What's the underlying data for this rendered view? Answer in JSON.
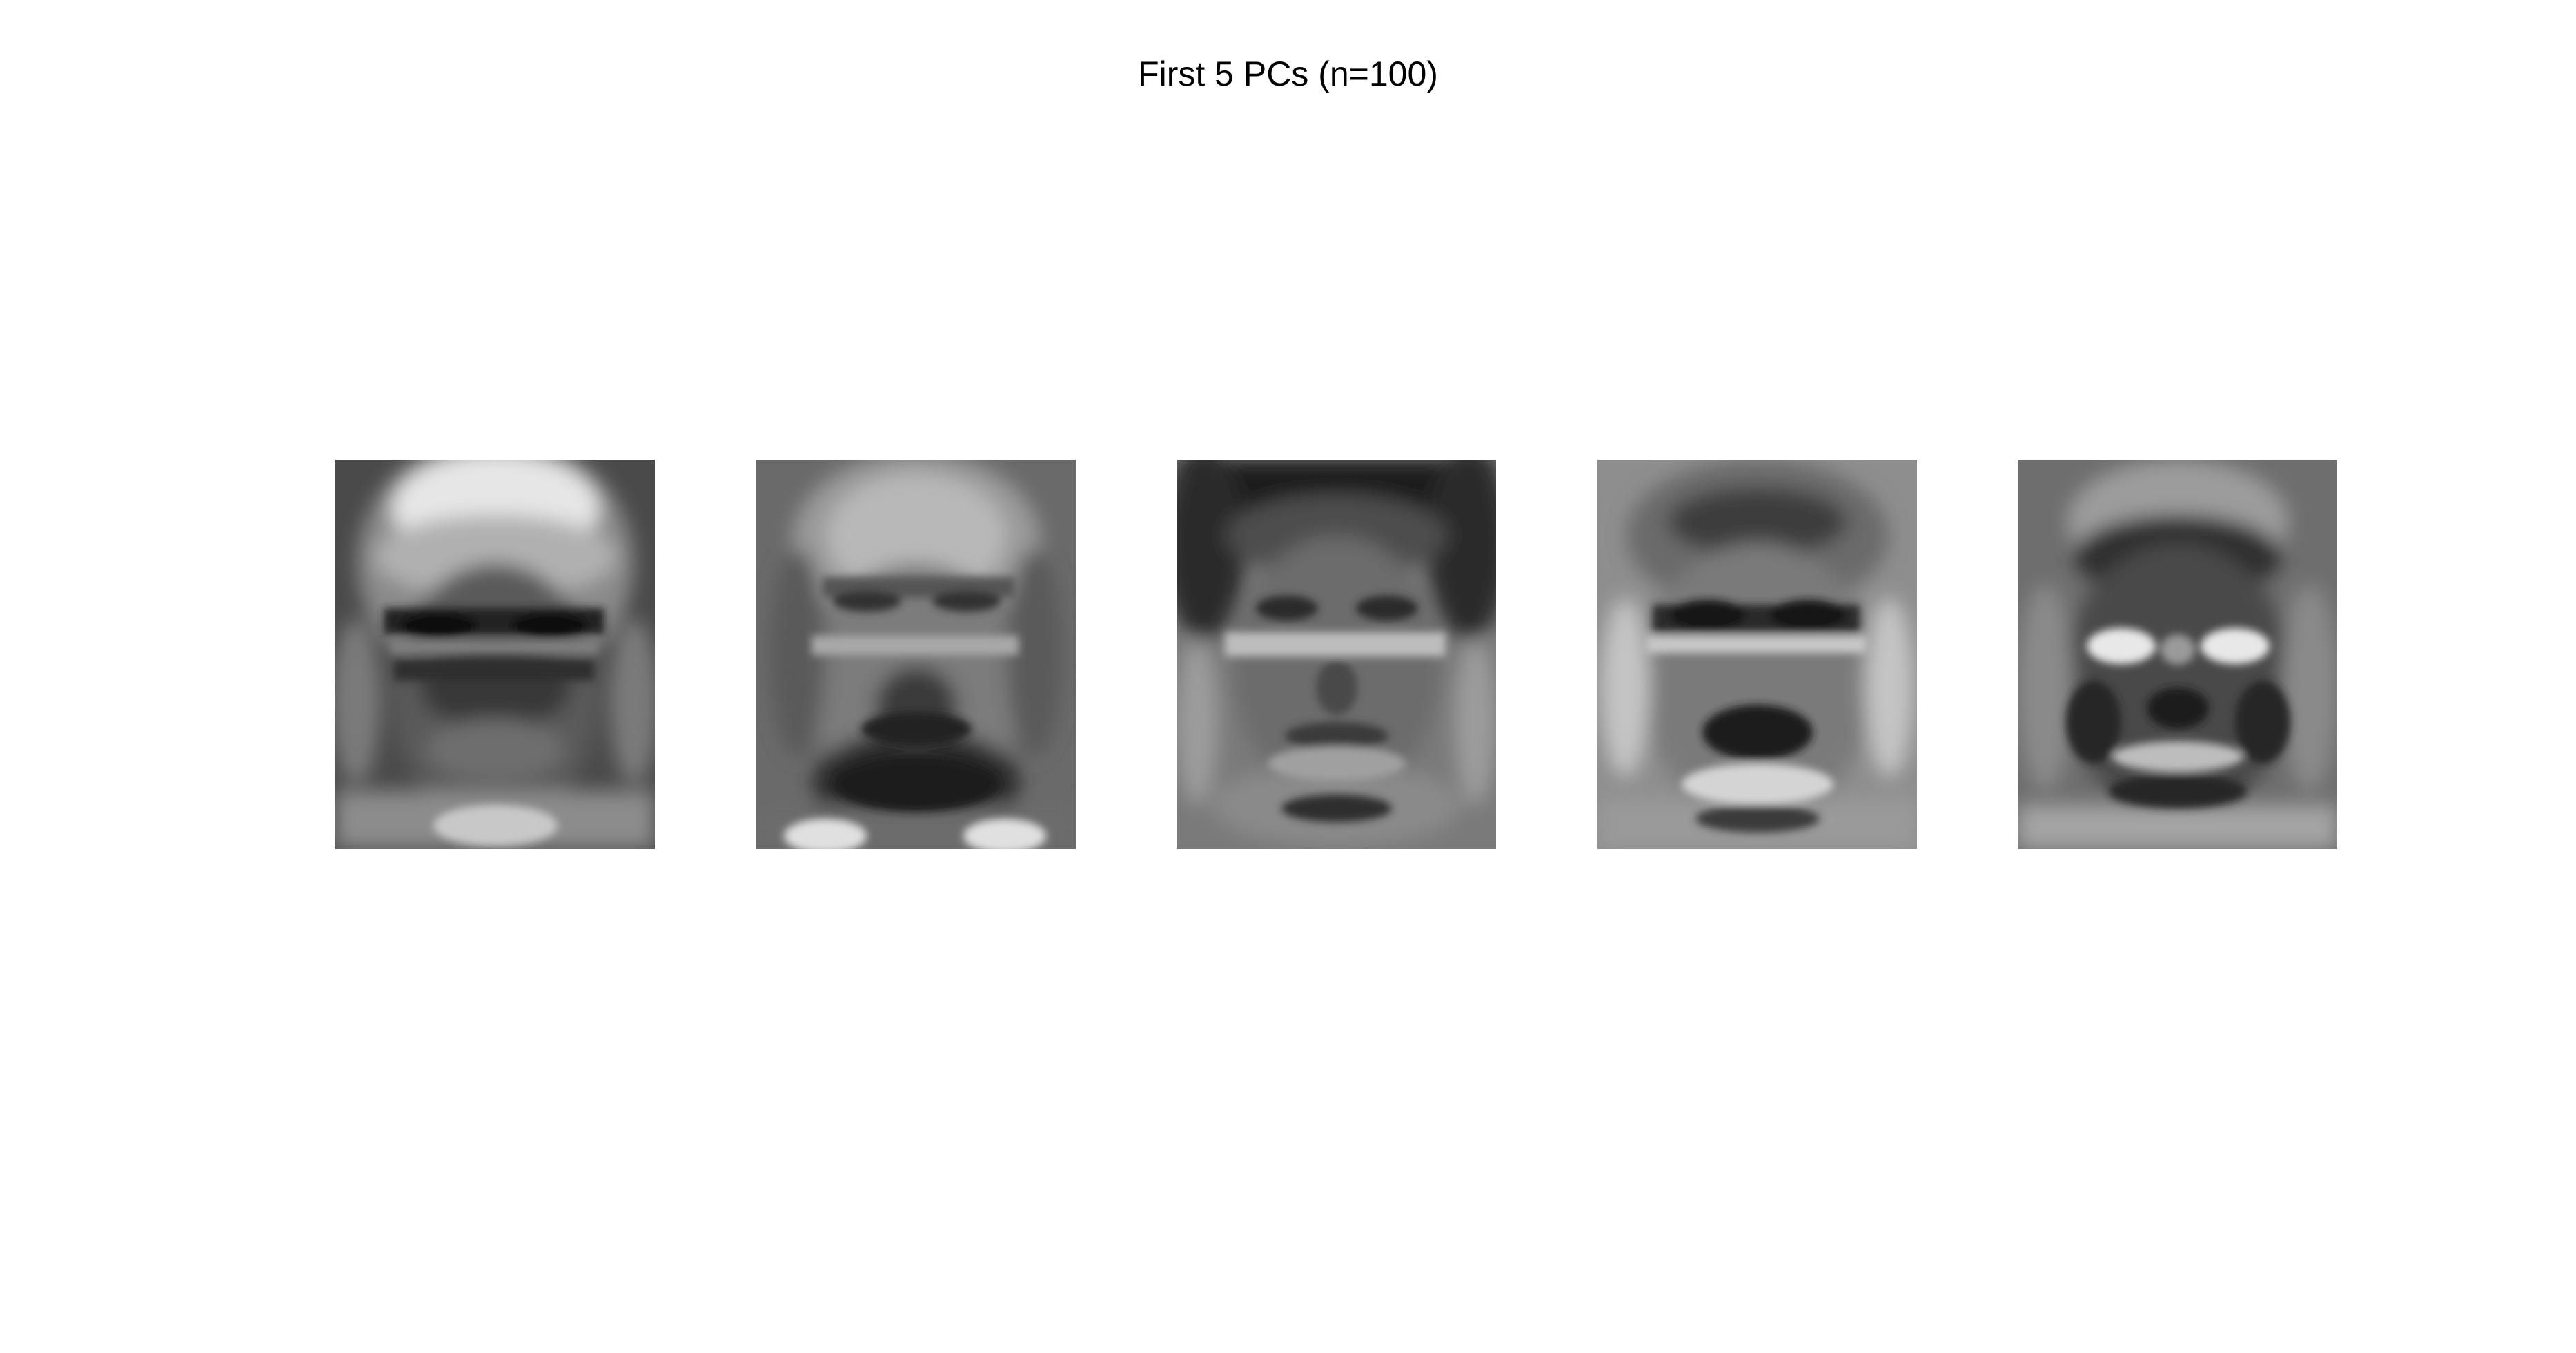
{
  "figure": {
    "title": "First 5 PCs (n=100)"
  },
  "panels": [
    {
      "name": "principal-component-1"
    },
    {
      "name": "principal-component-2"
    },
    {
      "name": "principal-component-3"
    },
    {
      "name": "principal-component-4"
    },
    {
      "name": "principal-component-5"
    }
  ]
}
